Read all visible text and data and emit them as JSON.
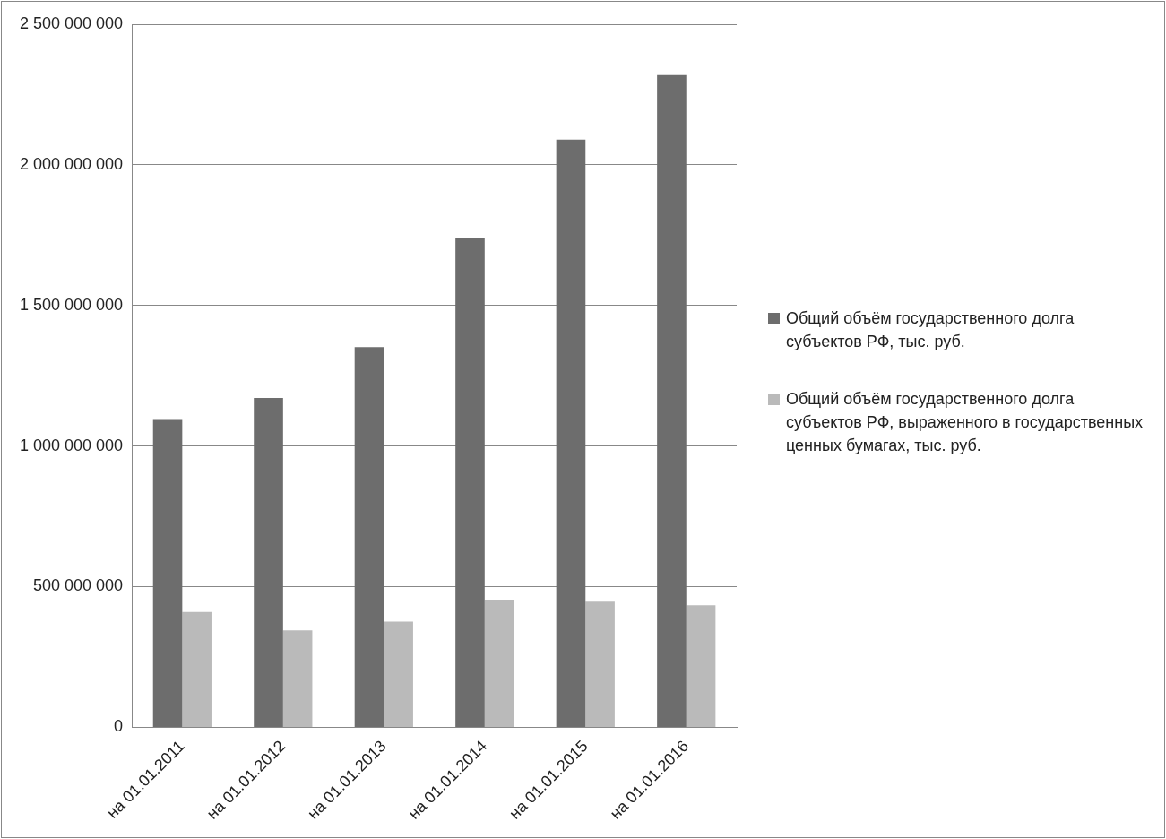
{
  "chart_data": {
    "type": "bar",
    "categories": [
      "на 01.01.2011",
      "на 01.01.2012",
      "на 01.01.2013",
      "на 01.01.2014",
      "на 01.01.2015",
      "на 01.01.2016"
    ],
    "series": [
      {
        "name": "Общий объём государственного долга субъектов РФ, тыс. руб.",
        "color": "#6d6d6d",
        "values": [
          1096000000,
          1171000000,
          1352000000,
          1738000000,
          2090000000,
          2319000000
        ]
      },
      {
        "name": "Общий объём государственного долга субъектов РФ, выраженного в государственных ценных бумагах, тыс. руб.",
        "color": "#bababa",
        "values": [
          410000000,
          345000000,
          376000000,
          454000000,
          447000000,
          434000000
        ]
      }
    ],
    "ylim": [
      0,
      2500000000
    ],
    "yticks": [
      {
        "value": 0,
        "label": "0"
      },
      {
        "value": 500000000,
        "label": "500 000 000"
      },
      {
        "value": 1000000000,
        "label": "1 000 000 000"
      },
      {
        "value": 1500000000,
        "label": "1 500 000 000"
      },
      {
        "value": 2000000000,
        "label": "2 000 000 000"
      },
      {
        "value": 2500000000,
        "label": "2 500 000 000"
      }
    ],
    "grid": "y",
    "legend": "right"
  }
}
